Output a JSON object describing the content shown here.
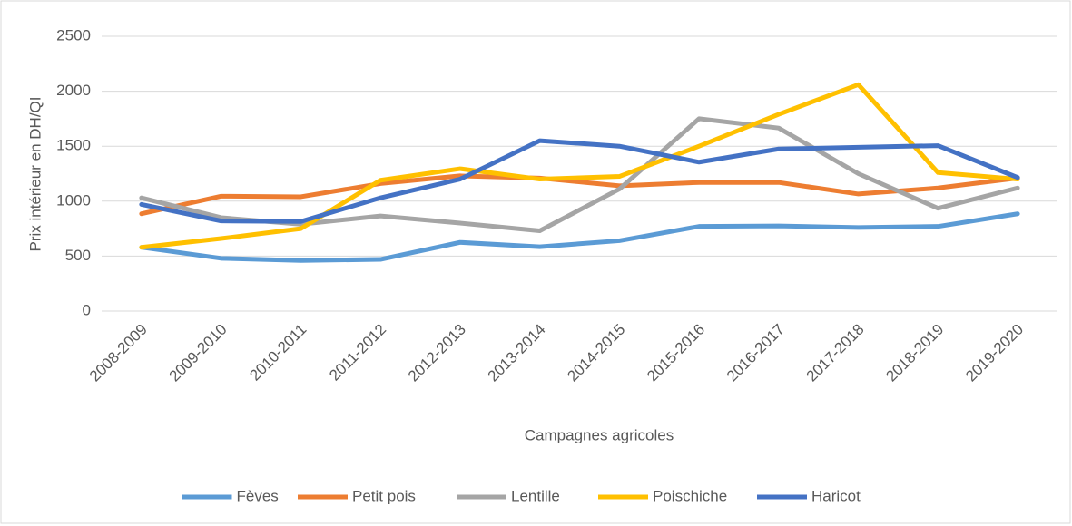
{
  "chart_data": {
    "type": "line",
    "x_label": "Campagnes agricoles",
    "y_label": "Prix intérieur en DH/QI",
    "categories": [
      "2008-2009",
      "2009-2010",
      "2010-2011",
      "2011-2012",
      "2012-2013",
      "2013-2014",
      "2014-2015",
      "2015-2016",
      "2016-2017",
      "2017-2018",
      "2018-2019",
      "2019-2020"
    ],
    "series": [
      {
        "name": "Fèves",
        "color": "#5b9bd5",
        "values": [
          580,
          480,
          460,
          470,
          625,
          585,
          640,
          770,
          775,
          760,
          770,
          885
        ]
      },
      {
        "name": "Petit pois",
        "color": "#ed7d31",
        "values": [
          885,
          1045,
          1040,
          1160,
          1230,
          1210,
          1140,
          1170,
          1170,
          1065,
          1120,
          1210
        ]
      },
      {
        "name": "Lentille",
        "color": "#a5a5a5",
        "values": [
          1030,
          850,
          790,
          865,
          800,
          730,
          1110,
          1750,
          1665,
          1250,
          935,
          1120
        ]
      },
      {
        "name": "Poischiche",
        "color": "#ffc000",
        "values": [
          580,
          660,
          750,
          1190,
          1295,
          1200,
          1225,
          1500,
          1790,
          2060,
          1260,
          1200
        ]
      },
      {
        "name": "Haricot",
        "color": "#4472c4",
        "values": [
          970,
          820,
          815,
          1030,
          1200,
          1550,
          1500,
          1355,
          1475,
          1490,
          1505,
          1215
        ]
      }
    ],
    "ylim": [
      0,
      2500
    ],
    "yticks": [
      0,
      500,
      1000,
      1500,
      2000,
      2500
    ],
    "grid": true,
    "legend": "bottom"
  }
}
